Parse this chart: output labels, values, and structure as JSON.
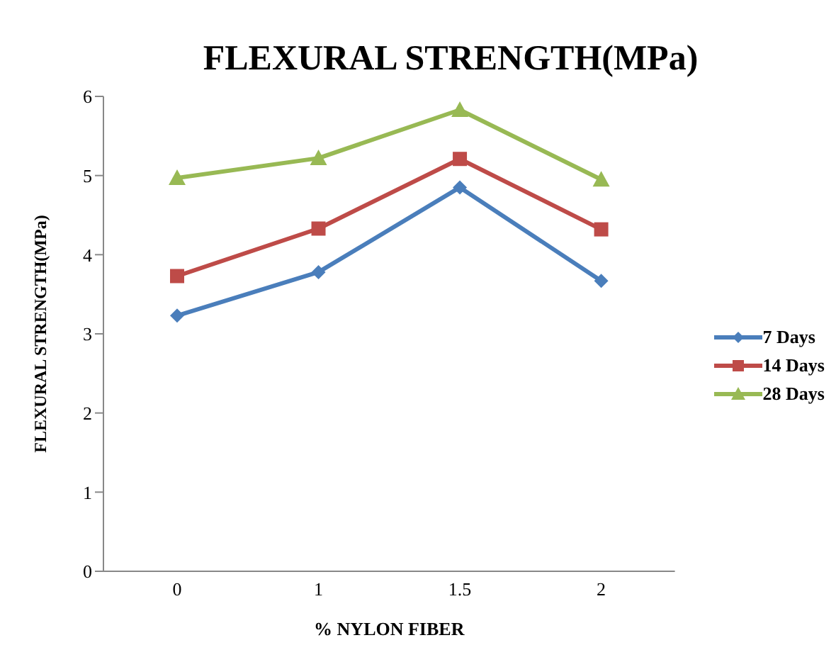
{
  "chart_data": {
    "type": "line",
    "title": "FLEXURAL STRENGTH(MPa)",
    "xlabel": "% NYLON FIBER",
    "ylabel": "FLEXURAL STRENGTH(MPa)",
    "categories": [
      "0",
      "1",
      "1.5",
      "2"
    ],
    "series": [
      {
        "name": "7 Days",
        "color": "#4a7ebb",
        "marker": "diamond",
        "values": [
          3.23,
          3.78,
          4.85,
          3.67
        ]
      },
      {
        "name": "14 Days",
        "color": "#be4b48",
        "marker": "square",
        "values": [
          3.73,
          4.33,
          5.21,
          4.32
        ]
      },
      {
        "name": "28 Days",
        "color": "#98b954",
        "marker": "triangle",
        "values": [
          4.97,
          5.22,
          5.83,
          4.95
        ]
      }
    ],
    "ylim": [
      0,
      6
    ],
    "yticks": [
      0,
      1,
      2,
      3,
      4,
      5,
      6
    ],
    "grid": false,
    "legend": "right",
    "line_style": "solid"
  }
}
